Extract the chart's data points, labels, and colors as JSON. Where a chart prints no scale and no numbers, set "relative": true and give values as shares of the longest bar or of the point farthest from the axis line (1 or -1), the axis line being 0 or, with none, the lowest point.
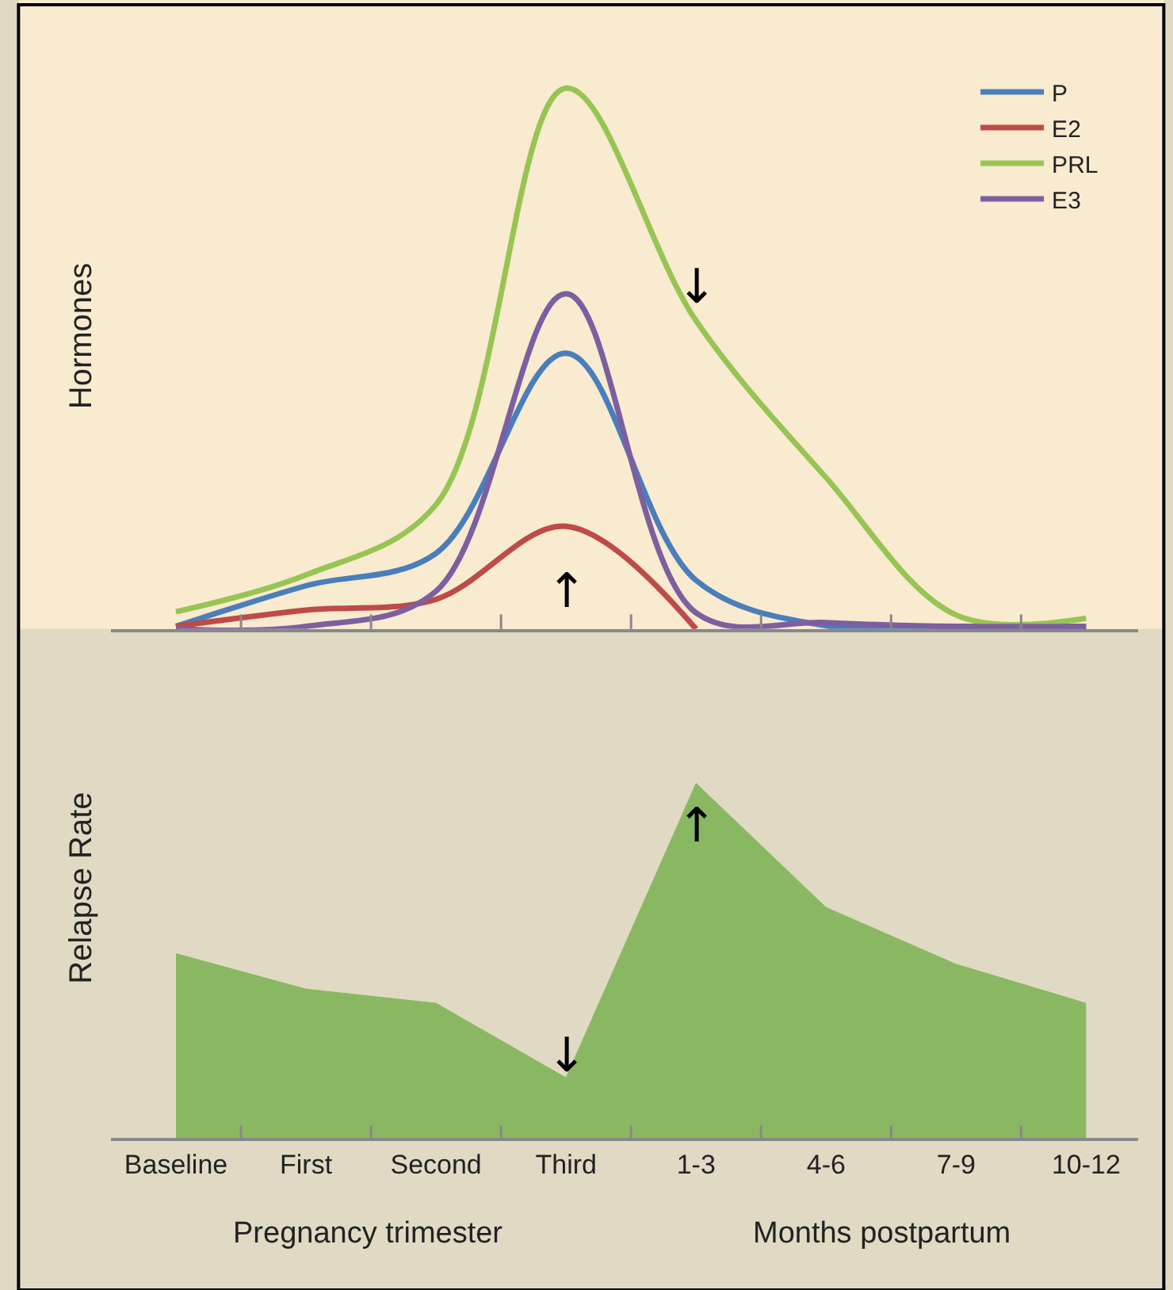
{
  "chart_data": [
    {
      "type": "line",
      "relative": true,
      "ylabel": "Hormones",
      "tick_labels": false,
      "legend": "top right",
      "grid": false,
      "line_style": "solid",
      "marker": "none",
      "categories": [
        null,
        null,
        null,
        null,
        null,
        null,
        null,
        null
      ],
      "series": [
        {
          "name": "P",
          "color": "#4a7ebb",
          "values": [
            0.005,
            0.08,
            0.14,
            0.51,
            0.09,
            0.006,
            0.005,
            0.005
          ]
        },
        {
          "name": "E2",
          "color": "#be4b48",
          "values": [
            0.005,
            0.035,
            0.055,
            0.19,
            0.0,
            null,
            null,
            null
          ]
        },
        {
          "name": "PRL",
          "color": "#98c454",
          "values": [
            0.032,
            0.1,
            0.23,
            1.0,
            0.57,
            0.28,
            0.026,
            0.02
          ]
        },
        {
          "name": "E3",
          "color": "#7d5fa0",
          "values": [
            0.0,
            0.005,
            0.07,
            0.62,
            0.03,
            0.012,
            0.005,
            0.005
          ]
        }
      ],
      "annotations": [
        "↑",
        "↓"
      ]
    },
    {
      "type": "area",
      "relative": true,
      "ylabel": "Relapse Rate",
      "tick_labels": "x",
      "legend": false,
      "grid": false,
      "categories": [
        "Baseline",
        "First",
        "Second",
        "Third",
        "1-3",
        "4-6",
        "7-9",
        "10-12"
      ],
      "series": [
        {
          "color": "#8ab862",
          "values": [
            0.52,
            0.42,
            0.38,
            0.17,
            1.0,
            0.65,
            0.49,
            0.38
          ]
        }
      ],
      "annotations": [
        "↓",
        "↑",
        "Pregnancy trimester",
        "Months postpartum"
      ]
    }
  ]
}
